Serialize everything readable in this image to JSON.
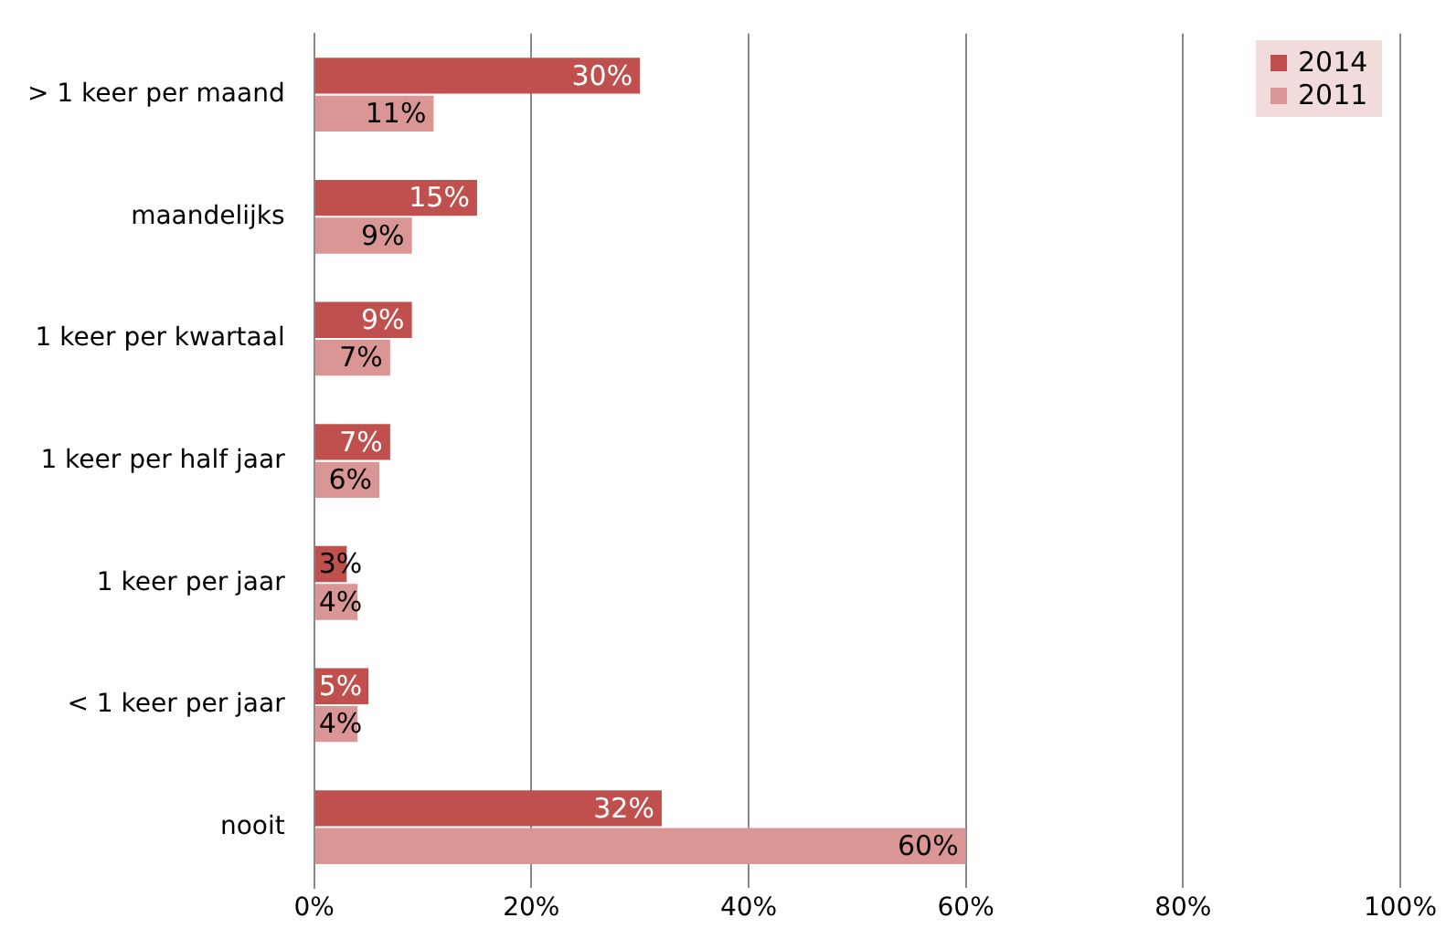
{
  "chart_data": {
    "type": "bar",
    "orientation": "horizontal",
    "categories": [
      "> 1 keer per maand",
      "maandelijks",
      "1 keer per kwartaal",
      "1 keer per half jaar",
      "1 keer per jaar",
      "< 1 keer per jaar",
      "nooit"
    ],
    "series": [
      {
        "name": "2014",
        "color": "#c0504d",
        "values": [
          30,
          15,
          9,
          7,
          3,
          5,
          32
        ],
        "value_labels": [
          "30%",
          "15%",
          "9%",
          "7%",
          "3%",
          "5%",
          "32%"
        ]
      },
      {
        "name": "2011",
        "color": "#d99694",
        "values": [
          11,
          9,
          7,
          6,
          4,
          4,
          60
        ],
        "value_labels": [
          "11%",
          "9%",
          "7%",
          "6%",
          "4%",
          "4%",
          "60%"
        ]
      }
    ],
    "xlim": [
      0,
      100
    ],
    "xticks": [
      {
        "value": 0,
        "label": "0%"
      },
      {
        "value": 20,
        "label": "20%"
      },
      {
        "value": 40,
        "label": "40%"
      },
      {
        "value": 60,
        "label": "60%"
      },
      {
        "value": 80,
        "label": "80%"
      },
      {
        "value": 100,
        "label": "100%"
      }
    ],
    "grid": "x",
    "legend": "top right"
  }
}
